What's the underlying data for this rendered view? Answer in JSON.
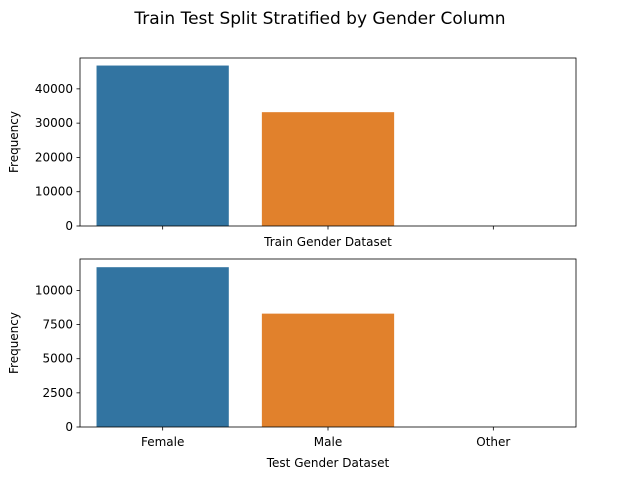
{
  "chart_data": {
    "suptitle": "Train Test Split Stratified by Gender Column",
    "charts": [
      {
        "type": "bar",
        "categories": [
          "Female",
          "Male",
          "Other"
        ],
        "values": [
          46800,
          33200,
          14
        ],
        "colors": [
          "#3274a1",
          "#e1812c",
          "#3a923a"
        ],
        "xlabel": "Train Gender Dataset",
        "ylabel": "Frequency",
        "ylim": [
          0,
          49000
        ],
        "yticks": [
          0,
          10000,
          20000,
          30000,
          40000
        ],
        "show_xticklabels": false,
        "grid": false
      },
      {
        "type": "bar",
        "categories": [
          "Female",
          "Male",
          "Other"
        ],
        "values": [
          11700,
          8300,
          4
        ],
        "colors": [
          "#3274a1",
          "#e1812c",
          "#3a923a"
        ],
        "xlabel": "Test Gender Dataset",
        "ylabel": "Frequency",
        "ylim": [
          0,
          12300
        ],
        "yticks": [
          0,
          2500,
          5000,
          7500,
          10000
        ],
        "show_xticklabels": true,
        "grid": false
      }
    ]
  }
}
